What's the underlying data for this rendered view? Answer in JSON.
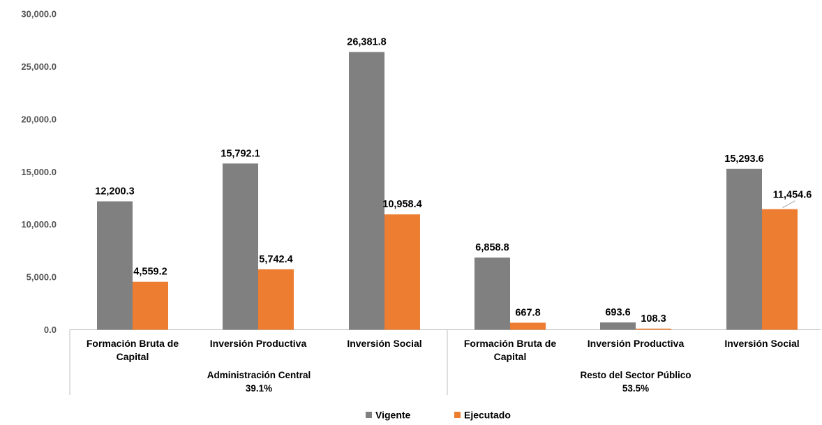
{
  "chart_data": {
    "type": "bar",
    "ylim": [
      0,
      30000
    ],
    "yticks": [
      "0.0",
      "5,000.0",
      "10,000.0",
      "15,000.0",
      "20,000.0",
      "25,000.0",
      "30,000.0"
    ],
    "grid": false,
    "legend_position": "bottom",
    "categories": [
      [
        "Formación Bruta de",
        "Capital"
      ],
      [
        "Inversión Productiva"
      ],
      [
        "Inversión Social"
      ],
      [
        "Formación Bruta de",
        "Capital"
      ],
      [
        "Inversión Productiva"
      ],
      [
        "Inversión Social"
      ]
    ],
    "groups": [
      {
        "name": "Administración Central",
        "share": "39.1%",
        "count": 3
      },
      {
        "name": "Resto del Sector Público",
        "share": "53.5%",
        "count": 3
      }
    ],
    "series": [
      {
        "name": "Vigente",
        "color": "#808080",
        "values": [
          12200.3,
          15792.1,
          26381.8,
          6858.8,
          693.6,
          15293.6
        ],
        "labels": [
          "12,200.3",
          "15,792.1",
          "26,381.8",
          "6,858.8",
          "693.6",
          "15,293.6"
        ]
      },
      {
        "name": "Ejecutado",
        "color": "#ED7D31",
        "values": [
          4559.2,
          5742.4,
          10958.4,
          667.8,
          108.3,
          11454.6
        ],
        "labels": [
          "4,559.2",
          "5,742.4",
          "10,958.4",
          "667.8",
          "108.3",
          "11,454.6"
        ]
      }
    ]
  }
}
